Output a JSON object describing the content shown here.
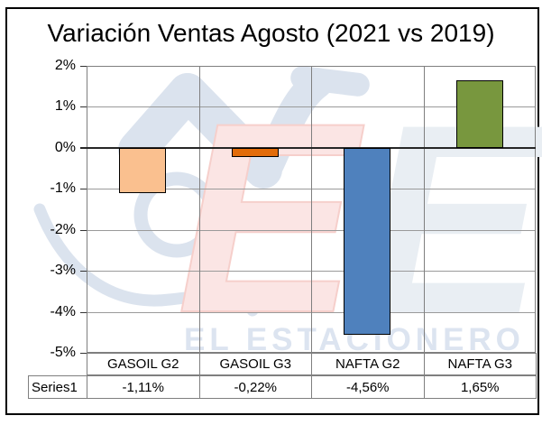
{
  "title": "Variación Ventas Agosto (2021 vs 2019)",
  "chart_data": {
    "type": "bar",
    "title": "Variación Ventas Agosto (2021 vs 2019)",
    "categories": [
      "GASOIL G2",
      "GASOIL G3",
      "NAFTA G2",
      "NAFTA G3"
    ],
    "series": [
      {
        "name": "Series1",
        "values": [
          -1.11,
          -0.22,
          -4.56,
          1.65
        ],
        "values_display": [
          "-1,11%",
          "-0,22%",
          "-4,56%",
          "1,65%"
        ],
        "colors": [
          "#FAC08F",
          "#E26C0A",
          "#4F81BD",
          "#78973E"
        ]
      }
    ],
    "xlabel": "",
    "ylabel": "",
    "ylim": [
      -5,
      2
    ],
    "ytick_step": 1,
    "ytick_labels_top_to_bottom": [
      "2%",
      "1%",
      "0%",
      "-1%",
      "-2%",
      "-3%",
      "-4%",
      "-5%"
    ],
    "grid": "both",
    "zero_line": true,
    "legend_position": "data-table-left",
    "data_table_shown": true
  },
  "watermark": {
    "text": "EL ESTACIONERO",
    "e_letter": "E",
    "nozzle_color": "#dbe3ee",
    "e_red_color": "#fbe5e4",
    "e_red_edge_color": "#f6cfcb",
    "e_blue_color": "#e9eef3",
    "text_color": "#dce4f0"
  },
  "styles": {
    "frame_border_color": "#000000",
    "background_color": "#ffffff",
    "h_gridline_color": "#9a9a9a",
    "v_gridline_color": "#7f7f7f",
    "plot_border_color": "#7f7f7f",
    "zero_line_color": "#262626",
    "tick_color": "#333333",
    "bar_border_color": "#000000",
    "table_border_color": "#7f7f7f",
    "text_color": "#000000"
  }
}
